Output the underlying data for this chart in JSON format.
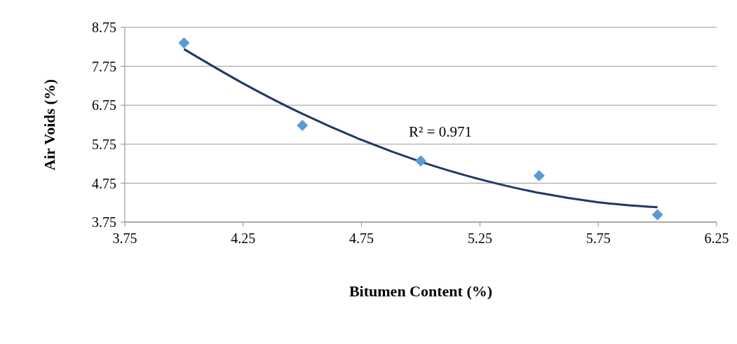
{
  "chart_data": {
    "type": "scatter",
    "xlabel": "Bitumen Content (%)",
    "ylabel": "Air Voids (%)",
    "xlim": [
      3.75,
      6.25
    ],
    "xticks": [
      3.75,
      4.25,
      4.75,
      5.25,
      5.75,
      6.25
    ],
    "ylim": [
      3.75,
      8.75
    ],
    "yticks": [
      3.75,
      4.75,
      5.75,
      6.75,
      7.75,
      8.75
    ],
    "grid": "y",
    "marker": "diamond",
    "legend": false,
    "annotations": [
      "R² = 0.971"
    ],
    "series": [
      {
        "color": "#5b9bd5",
        "x": [
          4,
          4.5,
          5,
          5.5,
          6
        ],
        "values": [
          8.35,
          6.23,
          5.32,
          4.94,
          3.94
        ]
      },
      {
        "type": "line",
        "color": "#1f3864",
        "marker": "none",
        "line_style": "solid",
        "x": [
          4,
          4.25,
          4.5,
          4.75,
          5,
          5.25,
          5.5,
          5.75,
          6
        ],
        "values": [
          8.19,
          7.31,
          6.53,
          5.86,
          5.3,
          4.85,
          4.5,
          4.26,
          4.13
        ]
      }
    ]
  }
}
